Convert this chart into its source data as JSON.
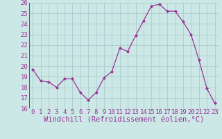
{
  "x": [
    0,
    1,
    2,
    3,
    4,
    5,
    6,
    7,
    8,
    9,
    10,
    11,
    12,
    13,
    14,
    15,
    16,
    17,
    18,
    19,
    20,
    21,
    22,
    23
  ],
  "y": [
    19.7,
    18.6,
    18.5,
    18.0,
    18.8,
    18.8,
    17.5,
    16.8,
    17.5,
    18.9,
    19.5,
    21.7,
    21.4,
    22.9,
    24.3,
    25.7,
    25.85,
    25.2,
    25.2,
    24.2,
    23.0,
    20.6,
    17.9,
    16.5
  ],
  "xlabel": "Windchill (Refroidissement éolien,°C)",
  "ylim": [
    16,
    26
  ],
  "yticks": [
    16,
    17,
    18,
    19,
    20,
    21,
    22,
    23,
    24,
    25,
    26
  ],
  "xticks": [
    0,
    1,
    2,
    3,
    4,
    5,
    6,
    7,
    8,
    9,
    10,
    11,
    12,
    13,
    14,
    15,
    16,
    17,
    18,
    19,
    20,
    21,
    22,
    23
  ],
  "line_color": "#993399",
  "marker_color": "#993399",
  "bg_color": "#cce8e6",
  "grid_color": "#aacccc",
  "tick_label_color": "#993399",
  "xlabel_color": "#993399",
  "font_size": 6.5,
  "xlabel_font_size": 7.5
}
